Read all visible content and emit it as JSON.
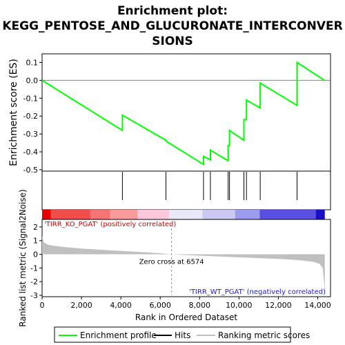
{
  "chart_data": {
    "type": "line",
    "title_lines": [
      "Enrichment plot:",
      "KEGG_PENTOSE_AND_GLUCURONATE_INTERCONVER",
      "SIONS"
    ],
    "top_panel": {
      "ylabel": "Enrichment score (ES)",
      "ylim": [
        -0.5,
        0.1
      ],
      "yticks": [
        0.1,
        0.0,
        -0.1,
        -0.2,
        -0.3,
        -0.4,
        -0.5
      ],
      "ytick_labels": [
        "0.1",
        "0.0",
        "-0.1",
        "-0.2",
        "-0.3",
        "-0.4",
        "-0.5"
      ],
      "series": [
        {
          "name": "Enrichment profile",
          "color": "#00ff00",
          "x": [
            0,
            4080,
            4080,
            6290,
            6290,
            8200,
            8200,
            8550,
            8550,
            9450,
            9450,
            9520,
            9520,
            10250,
            10250,
            10380,
            10380,
            11080,
            11080,
            12950,
            12950,
            14350
          ],
          "y": [
            0.0,
            -0.28,
            -0.195,
            -0.335,
            -0.34,
            -0.47,
            -0.425,
            -0.445,
            -0.39,
            -0.45,
            -0.365,
            -0.365,
            -0.28,
            -0.335,
            -0.22,
            -0.22,
            -0.11,
            -0.155,
            -0.015,
            -0.14,
            0.1,
            0.0
          ]
        }
      ]
    },
    "hits": [
      4080,
      6290,
      8200,
      8550,
      9450,
      9520,
      10250,
      10380,
      11080,
      12950
    ],
    "bottom_panel": {
      "ylabel": "Ranked list metric (Signal2Noise)",
      "ylim": [
        -3,
        2
      ],
      "yticks": [
        2,
        1,
        0,
        -1,
        -2,
        -3
      ],
      "ytick_labels": [
        "2",
        "1",
        "0",
        "-1",
        "-2",
        "-3"
      ],
      "metric_curve": {
        "x": [
          0,
          100,
          300,
          600,
          1000,
          2000,
          3000,
          4000,
          5000,
          6000,
          6574,
          7000,
          8000,
          9000,
          10000,
          11000,
          12000,
          12800,
          13400,
          13800,
          14100,
          14250,
          14320,
          14360
        ],
        "y": [
          1.3,
          0.85,
          0.7,
          0.62,
          0.55,
          0.42,
          0.33,
          0.25,
          0.17,
          0.08,
          0.0,
          -0.04,
          -0.1,
          -0.16,
          -0.22,
          -0.28,
          -0.34,
          -0.4,
          -0.48,
          -0.56,
          -0.7,
          -1.0,
          -2.0,
          -3.0
        ]
      },
      "zero_cross_label": "Zero cross at 6574",
      "zero_cross_x": 6574,
      "positive_label": "'TIRR_KO_PGAT' (positively correlated)",
      "negative_label": "'TIRR_WT_PGAT' (negatively correlated)"
    },
    "xlabel": "Rank in Ordered Dataset",
    "xlim": [
      0,
      15000
    ],
    "xticks": [
      0,
      2000,
      4000,
      6000,
      8000,
      10000,
      12000,
      14000
    ],
    "xtick_labels": [
      "0",
      "2,000",
      "4,000",
      "6,000",
      "8,000",
      "10,000",
      "12,000",
      "14,000"
    ],
    "n_genes": 14360,
    "color_bar": [
      {
        "from": 0,
        "to": 450,
        "color": "#e40000"
      },
      {
        "from": 450,
        "to": 2450,
        "color": "#f04d4d"
      },
      {
        "from": 2450,
        "to": 3450,
        "color": "#f57474"
      },
      {
        "from": 3450,
        "to": 4850,
        "color": "#fa9b9b"
      },
      {
        "from": 4850,
        "to": 6450,
        "color": "#fdc8dd"
      },
      {
        "from": 6450,
        "to": 8150,
        "color": "#e8e8f8"
      },
      {
        "from": 8150,
        "to": 9800,
        "color": "#c9c9f3"
      },
      {
        "from": 9800,
        "to": 11050,
        "color": "#9b9bef"
      },
      {
        "from": 11050,
        "to": 13900,
        "color": "#5a4fe0"
      },
      {
        "from": 13900,
        "to": 14360,
        "color": "#1a0fc4"
      }
    ],
    "legend": {
      "placement": "bottom",
      "items": [
        {
          "label": "Enrichment profile",
          "color": "#00ff00"
        },
        {
          "label": "Hits",
          "color": "#000000"
        },
        {
          "label": "Ranking metric scores",
          "color": "#c0c0c0"
        }
      ]
    }
  }
}
